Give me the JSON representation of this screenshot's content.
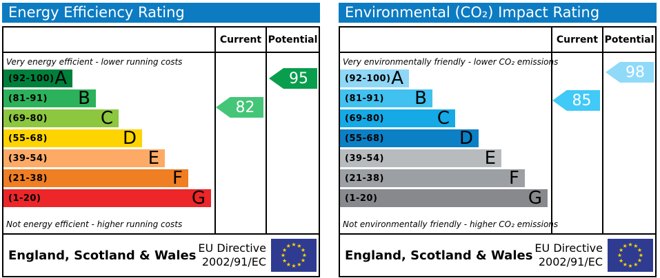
{
  "theme": {
    "header_bg": "#0c7bc2",
    "border_color": "#000000",
    "flag_bg": "#2e3b90",
    "star_color": "#ffd500"
  },
  "left": {
    "title": "Energy Efficiency Rating",
    "columns": {
      "current": "Current",
      "potential": "Potential"
    },
    "top_label": "Very energy efficient - lower running costs",
    "bottom_label": "Not energy efficient - higher running costs",
    "bands": [
      {
        "range": "(92-100)",
        "letter": "A",
        "color": "#00803d"
      },
      {
        "range": "(81-91)",
        "letter": "B",
        "color": "#2cb25a"
      },
      {
        "range": "(69-80)",
        "letter": "C",
        "color": "#8dc63f"
      },
      {
        "range": "(55-68)",
        "letter": "D",
        "color": "#fed400"
      },
      {
        "range": "(39-54)",
        "letter": "E",
        "color": "#fcaa65"
      },
      {
        "range": "(21-38)",
        "letter": "F",
        "color": "#f07e22"
      },
      {
        "range": "(1-20)",
        "letter": "G",
        "color": "#ec2629"
      }
    ],
    "current": {
      "value": 82,
      "color": "#44c578"
    },
    "potential": {
      "value": 95,
      "color": "#089e4d"
    },
    "footer": {
      "region": "England, Scotland & Wales",
      "directive_line1": "EU Directive",
      "directive_line2": "2002/91/EC"
    }
  },
  "right": {
    "title": "Environmental (CO₂) Impact Rating",
    "columns": {
      "current": "Current",
      "potential": "Potential"
    },
    "top_label": "Very environmentally friendly - lower CO₂ emissions",
    "bottom_label": "Not environmentally friendly - higher CO₂ emissions",
    "bands": [
      {
        "range": "(92-100)",
        "letter": "A",
        "color": "#8ed7f6"
      },
      {
        "range": "(81-91)",
        "letter": "B",
        "color": "#40c1f0"
      },
      {
        "range": "(69-80)",
        "letter": "C",
        "color": "#15a9e6"
      },
      {
        "range": "(55-68)",
        "letter": "D",
        "color": "#0c80c5"
      },
      {
        "range": "(39-54)",
        "letter": "E",
        "color": "#b8bbbe"
      },
      {
        "range": "(21-38)",
        "letter": "F",
        "color": "#9c9fa3"
      },
      {
        "range": "(1-20)",
        "letter": "G",
        "color": "#87898d"
      }
    ],
    "current": {
      "value": 85,
      "color": "#41c9f7"
    },
    "potential": {
      "value": 98,
      "color": "#90daf9"
    },
    "footer": {
      "region": "England, Scotland & Wales",
      "directive_line1": "EU Directive",
      "directive_line2": "2002/91/EC"
    }
  },
  "chart_data": [
    {
      "type": "bar",
      "title": "Energy Efficiency Rating",
      "categories": [
        "A (92-100)",
        "B (81-91)",
        "C (69-80)",
        "D (55-68)",
        "E (39-54)",
        "F (21-38)",
        "G (1-20)"
      ],
      "band_colors": [
        "#00803d",
        "#2cb25a",
        "#8dc63f",
        "#fed400",
        "#fcaa65",
        "#f07e22",
        "#ec2629"
      ],
      "current": 82,
      "potential": 95,
      "top_annotation": "Very energy efficient - lower running costs",
      "bottom_annotation": "Not energy efficient - higher running costs",
      "footer": "England, Scotland & Wales — EU Directive 2002/91/EC"
    },
    {
      "type": "bar",
      "title": "Environmental (CO₂) Impact Rating",
      "categories": [
        "A (92-100)",
        "B (81-91)",
        "C (69-80)",
        "D (55-68)",
        "E (39-54)",
        "F (21-38)",
        "G (1-20)"
      ],
      "band_colors": [
        "#8ed7f6",
        "#40c1f0",
        "#15a9e6",
        "#0c80c5",
        "#b8bbbe",
        "#9c9fa3",
        "#87898d"
      ],
      "current": 85,
      "potential": 98,
      "top_annotation": "Very environmentally friendly - lower CO₂ emissions",
      "bottom_annotation": "Not environmentally friendly - higher CO₂ emissions",
      "footer": "England, Scotland & Wales — EU Directive 2002/91/EC"
    }
  ]
}
